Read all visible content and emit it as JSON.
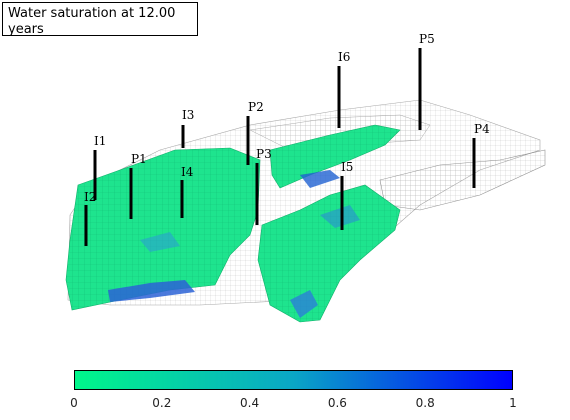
{
  "title": "Water saturation at 12.00 years",
  "wells": [
    {
      "name": "I1"
    },
    {
      "name": "I2"
    },
    {
      "name": "P1"
    },
    {
      "name": "I3"
    },
    {
      "name": "I4"
    },
    {
      "name": "P2"
    },
    {
      "name": "P3"
    },
    {
      "name": "I5"
    },
    {
      "name": "I6"
    },
    {
      "name": "P5"
    },
    {
      "name": "P4"
    }
  ],
  "colorbar": {
    "min": 0,
    "max": 1,
    "ticks": [
      "0",
      "0.2",
      "0.4",
      "0.6",
      "0.8",
      "1"
    ],
    "color_low": "#00f78a",
    "color_high": "#0000ff"
  },
  "colors": {
    "saturation_main": "#19e98c",
    "saturation_high": "#1b57d0",
    "grid_line": "#9a9a9a",
    "well": "#000000"
  }
}
